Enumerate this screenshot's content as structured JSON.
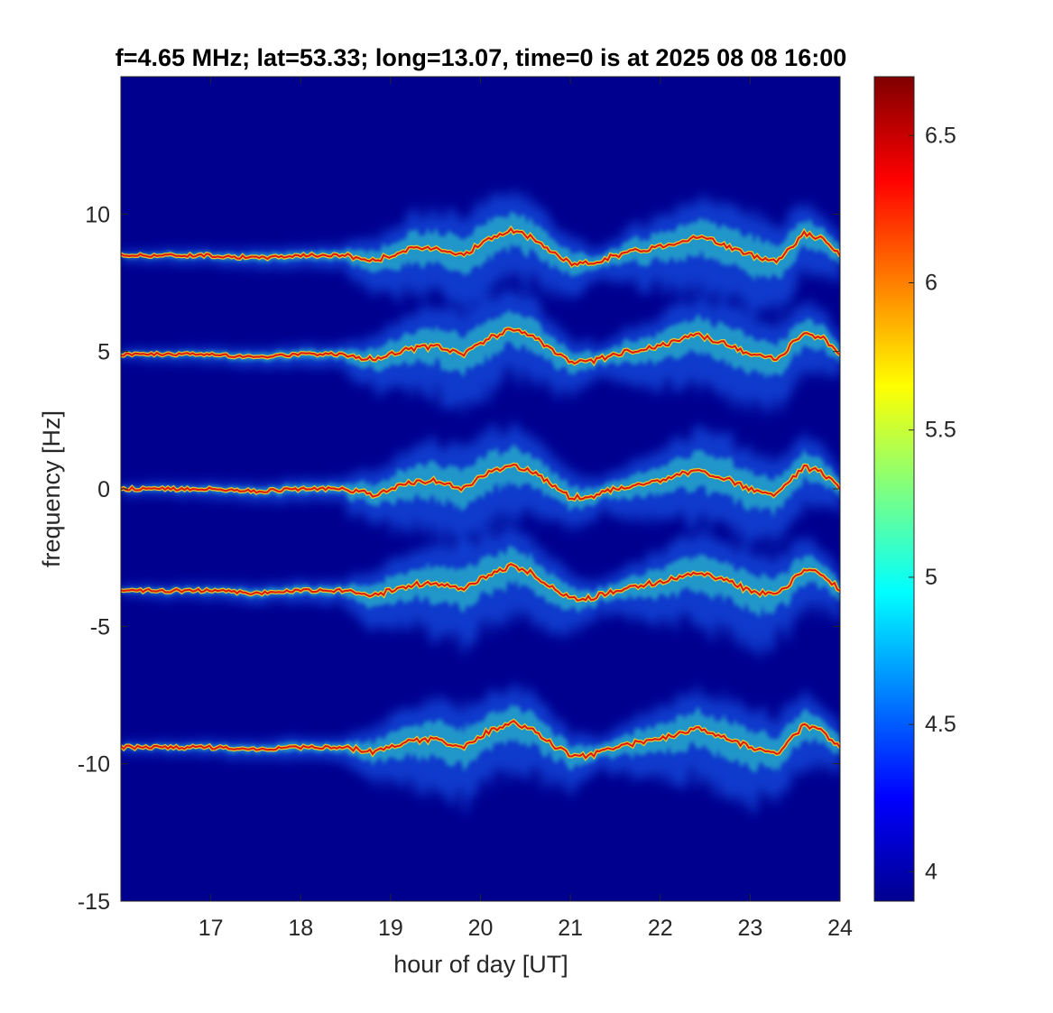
{
  "chart_data": {
    "type": "heatmap",
    "title": "f=4.65 MHz;  lat=53.33; long=13.07, time=0 is at 2025 08 08 16:00",
    "xlabel": "hour of day [UT]",
    "ylabel": "frequency [Hz]",
    "xlim": [
      16,
      24
    ],
    "ylim": [
      -15,
      15
    ],
    "xticks": [
      17,
      18,
      19,
      20,
      21,
      22,
      23,
      24
    ],
    "xtick_labels": [
      "17",
      "18",
      "19",
      "20",
      "21",
      "22",
      "23",
      "24"
    ],
    "yticks": [
      -15,
      -10,
      -5,
      0,
      5,
      10
    ],
    "ytick_labels": [
      "-15",
      "-10",
      "-5",
      "0",
      "5",
      "10"
    ],
    "colorbar": {
      "colormap": "jet",
      "range": [
        3.9,
        6.7
      ],
      "ticks": [
        4,
        4.5,
        5,
        5.5,
        6,
        6.5
      ],
      "tick_labels": [
        "4",
        "4.5",
        "5",
        "5.5",
        "6",
        "6.5"
      ]
    },
    "background_color": "#00008f",
    "series": [
      {
        "offset": 8.5
      },
      {
        "offset": 4.9
      },
      {
        "offset": 0.0
      },
      {
        "offset": -3.7
      },
      {
        "offset": -9.4
      }
    ],
    "trace_shape": {
      "x": [
        16.0,
        17.0,
        17.5,
        18.0,
        18.5,
        18.8,
        19.2,
        19.5,
        19.8,
        20.1,
        20.35,
        20.6,
        20.8,
        21.0,
        21.2,
        21.5,
        21.8,
        22.1,
        22.4,
        22.7,
        23.0,
        23.3,
        23.6,
        23.8,
        24.0
      ],
      "dy": [
        0.0,
        0.0,
        -0.1,
        0.0,
        0.0,
        -0.2,
        0.2,
        0.3,
        0.0,
        0.6,
        0.9,
        0.6,
        0.1,
        -0.3,
        -0.3,
        0.0,
        0.2,
        0.4,
        0.7,
        0.4,
        0.0,
        -0.2,
        0.8,
        0.6,
        0.0
      ]
    }
  }
}
